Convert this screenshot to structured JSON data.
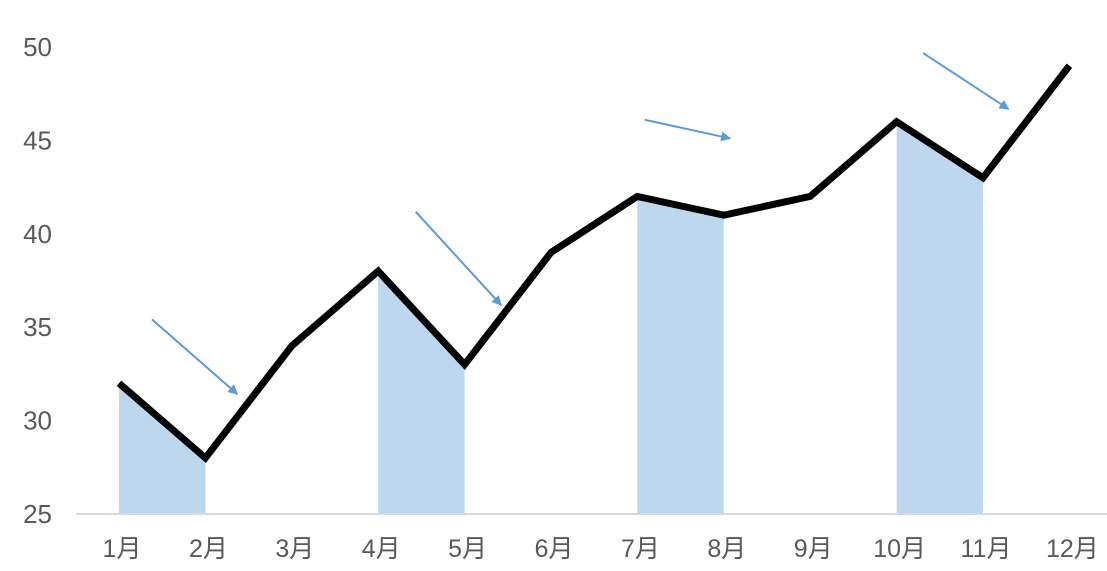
{
  "chart_data": {
    "type": "line",
    "title": "",
    "xlabel": "",
    "ylabel": "",
    "categories": [
      "1月",
      "2月",
      "3月",
      "4月",
      "5月",
      "6月",
      "7月",
      "8月",
      "9月",
      "10月",
      "11月",
      "12月"
    ],
    "series": [
      {
        "values": [
          32,
          28,
          34,
          38,
          33,
          39,
          42,
          41,
          42,
          46,
          43,
          49
        ],
        "color": "#000000"
      }
    ],
    "ylim": [
      25,
      50
    ],
    "yticks": [
      "25",
      "30",
      "35",
      "40",
      "45",
      "50"
    ],
    "grid": false,
    "legend": "none",
    "highlight_declines": [
      {
        "from": "1月",
        "to": "2月"
      },
      {
        "from": "4月",
        "to": "5月"
      },
      {
        "from": "7月",
        "to": "8月"
      },
      {
        "from": "10月",
        "to": "11月"
      }
    ],
    "colors": {
      "fill": "#bdd7ee",
      "arrow": "#5b9bd5",
      "axis": "#d9d9d9",
      "line": "#000000"
    }
  }
}
